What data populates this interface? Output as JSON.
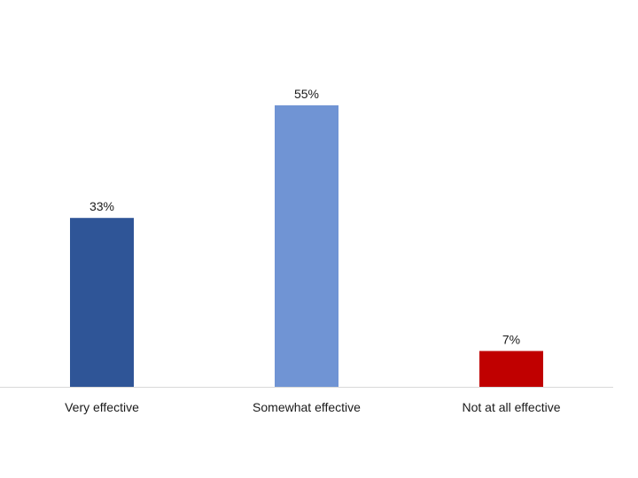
{
  "chart_data": {
    "type": "bar",
    "categories": [
      "Very effective",
      "Somewhat effective",
      "Not at all effective"
    ],
    "values": [
      33,
      55,
      7
    ],
    "data_labels": [
      "33%",
      "55%",
      "7%"
    ],
    "colors": [
      "#2F5597",
      "#7094D4",
      "#C00000"
    ],
    "title": "",
    "xlabel": "",
    "ylabel": "",
    "ylim": [
      0,
      60
    ],
    "grid": false,
    "legend": "none",
    "y_axis_visible": false
  }
}
